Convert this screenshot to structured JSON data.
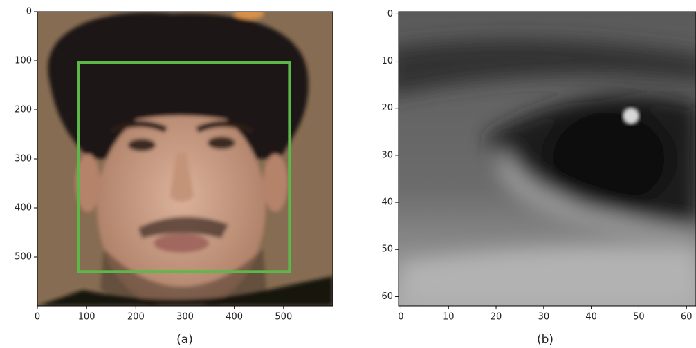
{
  "chart_data": [
    {
      "type": "image",
      "caption": "(a)",
      "xlim": [
        0,
        600
      ],
      "ylim": [
        600,
        0
      ],
      "xticks": [
        0,
        100,
        200,
        300,
        400,
        500
      ],
      "yticks": [
        0,
        100,
        200,
        300,
        400,
        500
      ],
      "box": {
        "x": [
          83,
          512
        ],
        "y": [
          103,
          530
        ],
        "color": "#5cb848"
      }
    },
    {
      "type": "image",
      "caption": "(b)",
      "xlim": [
        -0.5,
        62
      ],
      "ylim": [
        62,
        -0.5
      ],
      "xticks": [
        0,
        10,
        20,
        30,
        40,
        50,
        60
      ],
      "yticks": [
        0,
        10,
        20,
        30,
        40,
        50,
        60
      ]
    }
  ]
}
